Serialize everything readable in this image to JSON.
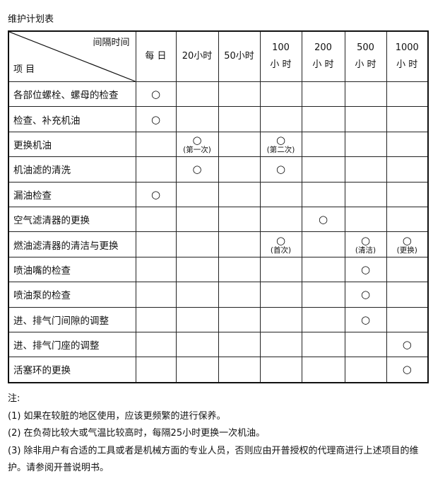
{
  "title": "维护计划表",
  "header": {
    "corner_top": "间隔时间",
    "corner_bottom": "项 目",
    "columns": [
      [
        "每 日"
      ],
      [
        "20小时"
      ],
      [
        "50小时"
      ],
      [
        "100",
        "小 时"
      ],
      [
        "200",
        "小 时"
      ],
      [
        "500",
        "小 时"
      ],
      [
        "1000",
        "小 时"
      ]
    ]
  },
  "rows": [
    {
      "item": "各部位螺栓、螺母的检查",
      "cells": [
        {
          "m": "○",
          "n": ""
        },
        null,
        null,
        null,
        null,
        null,
        null
      ]
    },
    {
      "item": "检查、补充机油",
      "cells": [
        {
          "m": "○",
          "n": ""
        },
        null,
        null,
        null,
        null,
        null,
        null
      ]
    },
    {
      "item": "更换机油",
      "cells": [
        null,
        {
          "m": "○",
          "n": "(第一次)"
        },
        null,
        {
          "m": "○",
          "n": "(第二次)"
        },
        null,
        null,
        null
      ]
    },
    {
      "item": "机油滤的清洗",
      "cells": [
        null,
        {
          "m": "○",
          "n": ""
        },
        null,
        {
          "m": "○",
          "n": ""
        },
        null,
        null,
        null
      ]
    },
    {
      "item": "漏油检查",
      "cells": [
        {
          "m": "○",
          "n": ""
        },
        null,
        null,
        null,
        null,
        null,
        null
      ]
    },
    {
      "item": "空气滤清器的更换",
      "cells": [
        null,
        null,
        null,
        null,
        {
          "m": "○",
          "n": ""
        },
        null,
        null
      ]
    },
    {
      "item": "燃油滤清器的清洁与更换",
      "cells": [
        null,
        null,
        null,
        {
          "m": "○",
          "n": "(首次)"
        },
        null,
        {
          "m": "○",
          "n": "(清洁)"
        },
        {
          "m": "○",
          "n": "(更换)"
        }
      ]
    },
    {
      "item": "喷油嘴的检查",
      "cells": [
        null,
        null,
        null,
        null,
        null,
        {
          "m": "○",
          "n": ""
        },
        null
      ]
    },
    {
      "item": "喷油泵的检查",
      "cells": [
        null,
        null,
        null,
        null,
        null,
        {
          "m": "○",
          "n": ""
        },
        null
      ]
    },
    {
      "item": "进、排气门间隙的调整",
      "cells": [
        null,
        null,
        null,
        null,
        null,
        {
          "m": "○",
          "n": ""
        },
        null
      ]
    },
    {
      "item": "进、排气门座的调整",
      "cells": [
        null,
        null,
        null,
        null,
        null,
        null,
        {
          "m": "○",
          "n": ""
        }
      ]
    },
    {
      "item": "活塞环的更换",
      "cells": [
        null,
        null,
        null,
        null,
        null,
        null,
        {
          "m": "○",
          "n": ""
        }
      ]
    }
  ],
  "notes": {
    "heading": "注:",
    "items": [
      "(1) 如果在较脏的地区使用，应该更频繁的进行保养。",
      "(2) 在负荷比较大或气温比较高时，每隔25小时更换一次机油。",
      "(3) 除非用户有合适的工具或者是机械方面的专业人员，否则应由开普授权的代理商进行上述项目的维护。请参阅开普说明书。"
    ]
  }
}
